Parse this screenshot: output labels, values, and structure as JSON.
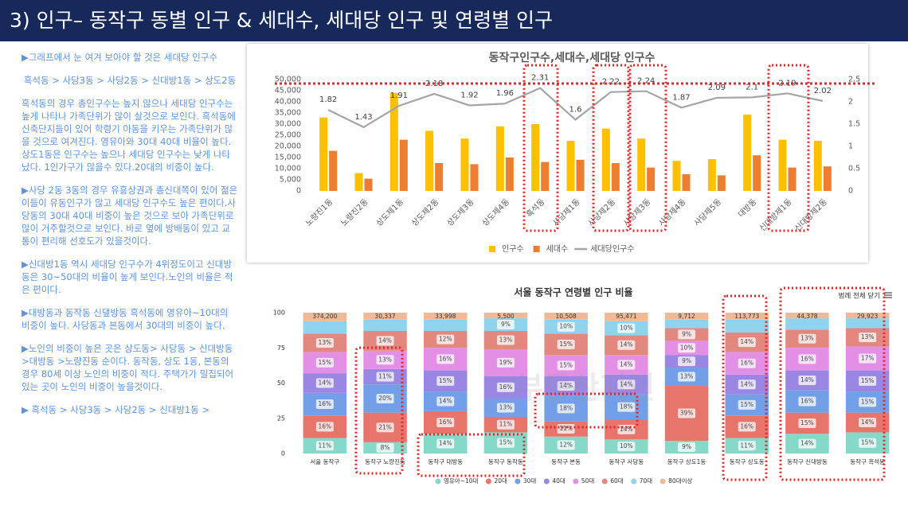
{
  "title": "3) 인구– 동작구 동별 인구 & 세대수, 세대당 인구 및 연령별 인구",
  "notes": [
    "▶그래프에서 눈 여겨 보아야 할 것은 세대당 인구수",
    "흑석동 > 사당3동 > 사당2동 > 신대방1동 > 상도2동",
    "흑석동의 경우 총인구수는 높지 않으나 세대당 인구수는 높게 나타나 가족단위가 많이 살것으로 보인다. 흑석동에 신축단지들이 있어 학령기 아동을 키우는 가족단위가 많을 것으로 여겨진다. 영유아와 30대 40대 비율이 높다.상도1동은 인구수는 높으나 세대당 인구수는 낮게 나타났다. 1인가구가 많을수 있다.20대의 비중이 높다.",
    "▶사당 2동 3동의 경우 유흥상권과 총신대쪽이 있어 젊은이들이 유동인구가 많고 세대당 인구수도 높은 편이다.사당동의 30대 40대 비중이 높은 것으로 보아 가족단위로 많이 거주할것으로 보인다. 바로 옆에 방배동이 있고 교통이 편리해 선호도가 있을것이다.",
    "▶신대방1동 역시 세대당 인구수가 4위정도이고 신대방동은 30~50대의 비율이 높게 보인다.노인의 비율은 적은 편이다.",
    "▶대방동과 동작동 신댚방동 흑석동에 영유아~10대의 비중이 높다. 사당동과 본동에서 30대의 비중이 높다.",
    "▶노인의 비중이 높은 곳은 상도동> 사당동 > 신대방동>대방동 >노량진동 순이다. 동작동, 상도 1동, 본동의 경우 80세 이상 노인의 비중이 적다. 주택가가 밀집되어 있는 곳이 노인의 비중이 높을것이다.",
    "▶ 흑석동 > 사당3동 > 사당2동 > 신대방1동 >"
  ],
  "chart_data": [
    {
      "type": "combo",
      "title": "동작구인구수,세대수,세대당 인구수",
      "categories": [
        "노량진1동",
        "노량진2동",
        "상도제1동",
        "상도제2동",
        "상도제3동",
        "상도제4동",
        "흑석동",
        "사당제1동",
        "사당제2동",
        "사당제3동",
        "사당제4동",
        "사당제5동",
        "대방동",
        "신대방제1동",
        "신대방제2동"
      ],
      "series": [
        {
          "name": "인구수",
          "kind": "bar",
          "color": "#ffc000",
          "values": [
            33000,
            8000,
            44000,
            27000,
            23500,
            29000,
            30000,
            22500,
            28000,
            23500,
            13500,
            14300,
            34300,
            23000,
            22500
          ]
        },
        {
          "name": "세대수",
          "kind": "bar",
          "color": "#ed7d31",
          "values": [
            18000,
            5500,
            23000,
            12500,
            12000,
            15000,
            13000,
            14000,
            12500,
            10500,
            7500,
            7000,
            16000,
            10500,
            11000
          ]
        },
        {
          "name": "세대당인구수",
          "kind": "line",
          "axis": "y2",
          "color": "#a5a5a5",
          "values": [
            1.82,
            1.43,
            1.91,
            2.18,
            1.92,
            1.96,
            2.31,
            1.6,
            2.22,
            2.24,
            1.87,
            2.09,
            2.1,
            2.19,
            2.02
          ]
        }
      ],
      "ylim": [
        0,
        50000
      ],
      "yticks": [
        0,
        {
          "value": 5000,
          "label": "5,000"
        },
        {
          "value": 10000,
          "label": "10,000"
        },
        {
          "value": 15000,
          "label": "15,000"
        },
        {
          "value": 20000,
          "label": "20,000"
        },
        {
          "value": 25000,
          "label": "25,000"
        },
        {
          "value": 30000,
          "label": "30,000"
        },
        {
          "value": 35000,
          "label": "35,000"
        },
        {
          "value": 40000,
          "label": "40,000"
        },
        {
          "value": 45000,
          "label": "45,000"
        },
        {
          "value": 50000,
          "label": "50,000"
        }
      ],
      "y2lim": [
        0,
        2.5
      ],
      "y2ticks": [
        0,
        0.5,
        1,
        1.5,
        2,
        2.5
      ],
      "legend": "bottom",
      "grid": false
    },
    {
      "type": "stacked_bar",
      "title": "서울 동작구 연령별 인구 비율",
      "legend_toggle": "범례 전체 닫기",
      "watermark": "부동산지인",
      "categories": [
        "서울 동작구",
        "동작구 노량진동",
        "동작구 대방동",
        "동작구 동작동",
        "동작구 본동",
        "동작구 사당동",
        "동작구 상도1동",
        "동작구 상도동",
        "동작구 신대방동",
        "동작구 흑석동"
      ],
      "totals": [
        {
          "value": 374200,
          "label": "374,200"
        },
        {
          "value": 30337,
          "label": "30,337"
        },
        {
          "value": 33998,
          "label": "33,998"
        },
        {
          "value": 5500,
          "label": "5,500"
        },
        {
          "value": 10508,
          "label": "10,508"
        },
        {
          "value": 95471,
          "label": "95,471"
        },
        {
          "value": 9712,
          "label": "9,712"
        },
        {
          "value": 113773,
          "label": "113,773"
        },
        {
          "value": 44378,
          "label": "44,378"
        },
        {
          "value": 29923,
          "label": "29,923"
        }
      ],
      "series": [
        {
          "name": "영유아~10대",
          "color": "#86d9c9",
          "values": [
            11,
            8,
            14,
            15,
            12,
            10,
            9,
            11,
            14,
            15
          ],
          "value_labels": [
            "11%",
            "8%",
            "14%",
            "15%",
            "12%",
            "10%",
            "9%",
            "11%",
            "14%",
            "15%"
          ]
        },
        {
          "name": "20대",
          "color": "#e8756b",
          "values": [
            16,
            21,
            16,
            11,
            11,
            14,
            39,
            16,
            15,
            14
          ],
          "value_labels": [
            "16%",
            "21%",
            "16%",
            "11%",
            "11%",
            "14%",
            "39%",
            "16%",
            "15%",
            "14%"
          ]
        },
        {
          "name": "30대",
          "color": "#739fe8",
          "values": [
            16,
            20,
            14,
            13,
            18,
            18,
            13,
            15,
            16,
            15
          ],
          "value_labels": [
            "16%",
            "20%",
            "14%",
            "13%",
            "18%",
            "18%",
            "13%",
            "15%",
            "16%",
            "15%"
          ]
        },
        {
          "name": "40대",
          "color": "#9a86e3",
          "values": [
            14,
            11,
            15,
            16,
            14,
            14,
            9,
            14,
            14,
            15
          ],
          "value_labels": [
            "14%",
            "11%",
            "15%",
            "16%",
            "14%",
            "14%",
            "9%",
            "14%",
            "14%",
            "15%"
          ]
        },
        {
          "name": "50대",
          "color": "#e48fe6",
          "values": [
            15,
            13,
            16,
            19,
            15,
            14,
            10,
            16,
            16,
            17
          ],
          "value_labels": [
            "15%",
            "13%",
            "16%",
            "19%",
            "15%",
            "14%",
            "10%",
            "16%",
            "16%",
            "17%"
          ]
        },
        {
          "name": "60대",
          "color": "#e3887e",
          "values": [
            13,
            14,
            12,
            13,
            15,
            14,
            9,
            14,
            13,
            13
          ],
          "value_labels": [
            "13%",
            "14%",
            "12%",
            "13%",
            "15%",
            "14%",
            "9%",
            "14%",
            "13%",
            "13%"
          ]
        },
        {
          "name": "70대",
          "color": "#8fd3ec",
          "values": [
            9,
            8,
            8,
            9,
            10,
            10,
            6,
            9,
            8,
            7
          ],
          "value_labels": [
            null,
            null,
            null,
            "9%",
            "10%",
            "10%",
            null,
            null,
            null,
            null
          ]
        },
        {
          "name": "80대이상",
          "color": "#f2b994",
          "values": [
            6,
            5,
            5,
            4,
            5,
            6,
            5,
            5,
            4,
            4
          ]
        }
      ],
      "ylim": [
        0,
        100
      ],
      "yticks": [
        0,
        25,
        50,
        75,
        100
      ],
      "legend": "bottom",
      "grid": false
    }
  ]
}
